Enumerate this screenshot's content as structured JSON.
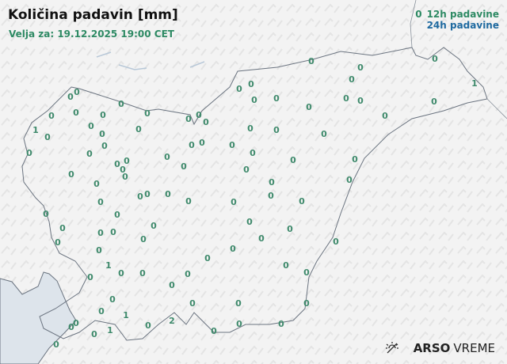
{
  "header": {
    "title": "Količina padavin [mm]",
    "valid": "Velja za: 19.12.2025 19:00 CET"
  },
  "legend": {
    "sample_value": "0",
    "items": [
      {
        "label": "12h padavine",
        "color": "#2e8a64"
      },
      {
        "label": "24h padavine",
        "color": "#1f6aa0"
      }
    ]
  },
  "logo": {
    "brand": "ARSO",
    "product": "VREME",
    "icon": "sun-icon"
  },
  "map": {
    "land_color": "#f3f3f3",
    "sea_color": "#dde4eb",
    "border_color": "#6b7480",
    "station_values_12h": [
      0,
      0,
      0,
      0,
      0,
      0,
      0,
      0,
      1,
      0,
      0,
      0,
      0,
      0,
      0,
      0,
      0,
      0,
      0,
      0,
      0,
      0,
      0,
      0,
      1,
      0,
      0,
      0,
      0,
      0,
      0,
      0,
      0,
      0,
      0,
      0,
      0,
      0,
      0,
      0,
      0,
      0,
      0,
      0,
      0,
      0,
      0,
      0,
      0,
      0,
      0,
      0,
      0,
      0,
      0,
      0,
      0,
      0,
      0,
      0,
      0,
      0,
      0,
      0,
      0,
      0,
      0,
      0,
      0,
      0,
      0,
      0,
      0,
      0,
      1,
      0,
      0,
      0,
      0,
      0,
      0,
      0,
      0,
      0,
      1,
      0,
      0,
      0,
      0,
      0,
      2,
      0,
      0,
      1,
      0,
      0,
      0,
      0,
      0
    ]
  }
}
